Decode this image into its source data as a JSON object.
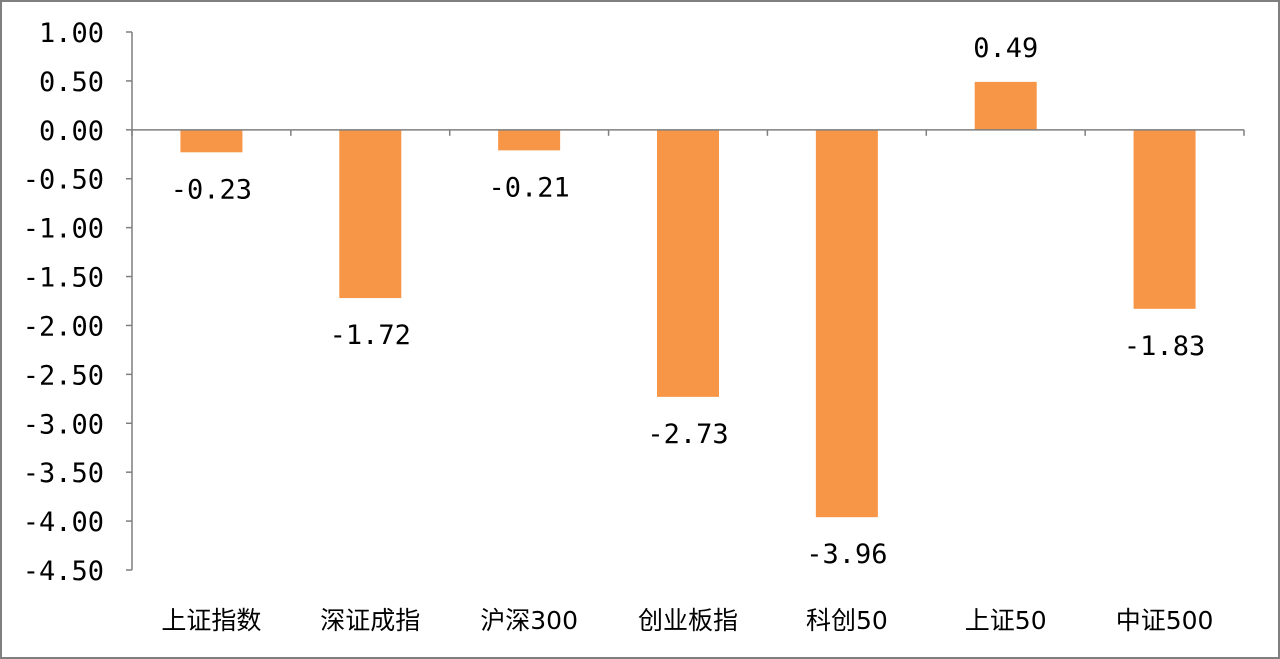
{
  "chart_data": {
    "type": "bar",
    "title": "",
    "xlabel": "",
    "ylabel": "",
    "categories": [
      "上证指数",
      "深证成指",
      "沪深300",
      "创业板指",
      "科创50",
      "上证50",
      "中证500"
    ],
    "values": [
      -0.23,
      -1.72,
      -0.21,
      -2.73,
      -3.96,
      0.49,
      -1.83
    ],
    "value_labels": [
      "-0.23",
      "-1.72",
      "-0.21",
      "-2.73",
      "-3.96",
      "0.49",
      "-1.83"
    ],
    "ylim": [
      -4.5,
      1.0
    ],
    "yticks": [
      1.0,
      0.5,
      0.0,
      -0.5,
      -1.0,
      -1.5,
      -2.0,
      -2.5,
      -3.0,
      -3.5,
      -4.0,
      -4.5
    ],
    "ytick_labels": [
      "1.00",
      "0.50",
      "0.00",
      "-0.50",
      "-1.00",
      "-1.50",
      "-2.00",
      "-2.50",
      "-3.00",
      "-3.50",
      "-4.00",
      "-4.50"
    ],
    "grid": false,
    "legend": "none",
    "bar_color": "#F79646"
  }
}
